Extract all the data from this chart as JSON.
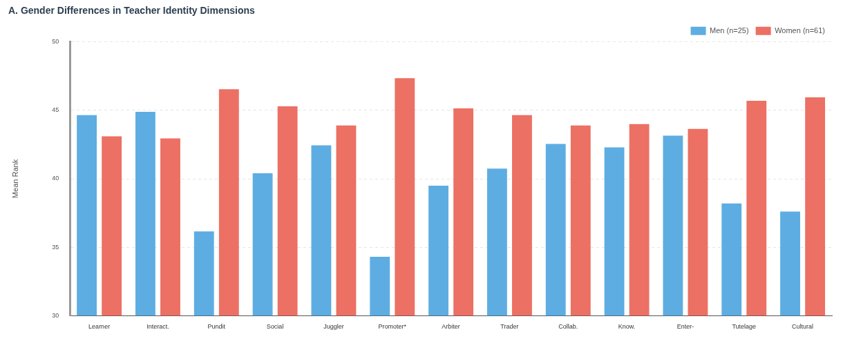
{
  "chart_data": {
    "type": "bar",
    "title": "A. Gender Differences in Teacher Identity Dimensions",
    "ylabel": "Mean Rank",
    "categories": [
      "Learner",
      "Interact.",
      "Pundit",
      "Social",
      "Juggler",
      "Promoter*",
      "Arbiter",
      "Trader",
      "Collab.",
      "Know.",
      "Enter-",
      "Tutelage",
      "Cultural"
    ],
    "series": [
      {
        "name": "Men (n=25)",
        "color": "#5dade2",
        "values": [
          44.65,
          44.9,
          36.15,
          40.4,
          42.45,
          34.3,
          39.5,
          40.75,
          42.55,
          42.3,
          43.15,
          38.2,
          37.6
        ]
      },
      {
        "name": "Women (n=61)",
        "color": "#ec7063",
        "values": [
          43.1,
          42.95,
          46.55,
          45.3,
          43.9,
          47.35,
          45.15,
          44.65,
          43.9,
          44.0,
          43.65,
          45.7,
          45.95
        ]
      }
    ],
    "ylim": [
      30,
      50
    ],
    "yticks": [
      30,
      35,
      40,
      45,
      50
    ],
    "grid": "y",
    "legend": "top right"
  }
}
